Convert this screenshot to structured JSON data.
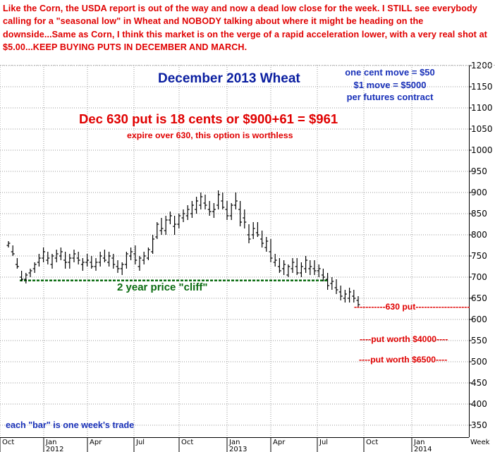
{
  "header_text": "Like the Corn, the USDA report is out of the way and now a dead low close for the week.  I STILL see everybody calling for a \"seasonal low\" in Wheat and NOBODY talking about where it might be heading on the downside...Same as Corn, I think this market is on the verge of a rapid acceleration lower, with a very real shot at $5.00...KEEP BUYING PUTS IN DECEMBER AND MARCH.",
  "colors": {
    "header_red": "#e00000",
    "title_blue": "#0a1ea0",
    "cliff_green": "#0a6b10",
    "bars": "#000000",
    "grid": "#999999"
  },
  "chart_data": {
    "type": "ohlc",
    "title": "December 2013 Wheat",
    "x_unit_label": "Week",
    "ylim": [
      325,
      1210
    ],
    "y_ticks": [
      350,
      400,
      450,
      500,
      550,
      600,
      650,
      700,
      750,
      800,
      850,
      900,
      950,
      1000,
      1050,
      1100,
      1150,
      1200
    ],
    "x_ticks": [
      {
        "label": "Oct",
        "year": ""
      },
      {
        "label": "Jan",
        "year": "2012"
      },
      {
        "label": "Apr",
        "year": ""
      },
      {
        "label": "Jul",
        "year": ""
      },
      {
        "label": "Oct",
        "year": ""
      },
      {
        "label": "Jan",
        "year": "2013"
      },
      {
        "label": "Apr",
        "year": ""
      },
      {
        "label": "Jul",
        "year": ""
      },
      {
        "label": "Oct",
        "year": ""
      },
      {
        "label": "Jan",
        "year": "2014"
      }
    ],
    "grid": true,
    "bars": [
      [
        1,
        775,
        785,
        770,
        780
      ],
      [
        2,
        760,
        775,
        750,
        755
      ],
      [
        3,
        730,
        745,
        720,
        725
      ],
      [
        4,
        700,
        715,
        690,
        695
      ],
      [
        5,
        695,
        710,
        685,
        705
      ],
      [
        6,
        710,
        720,
        700,
        715
      ],
      [
        7,
        720,
        735,
        710,
        730
      ],
      [
        8,
        735,
        755,
        725,
        745
      ],
      [
        9,
        745,
        770,
        735,
        760
      ],
      [
        10,
        740,
        760,
        730,
        745
      ],
      [
        11,
        730,
        755,
        720,
        750
      ],
      [
        12,
        745,
        765,
        735,
        755
      ],
      [
        13,
        750,
        770,
        740,
        760
      ],
      [
        14,
        740,
        760,
        720,
        735
      ],
      [
        15,
        735,
        755,
        720,
        745
      ],
      [
        16,
        745,
        765,
        735,
        755
      ],
      [
        17,
        745,
        760,
        730,
        740
      ],
      [
        18,
        730,
        745,
        715,
        735
      ],
      [
        19,
        735,
        755,
        725,
        740
      ],
      [
        20,
        735,
        750,
        720,
        725
      ],
      [
        21,
        725,
        745,
        715,
        735
      ],
      [
        22,
        735,
        760,
        725,
        750
      ],
      [
        23,
        745,
        765,
        735,
        740
      ],
      [
        24,
        735,
        760,
        725,
        750
      ],
      [
        25,
        745,
        755,
        720,
        730
      ],
      [
        26,
        725,
        740,
        710,
        720
      ],
      [
        27,
        720,
        735,
        705,
        730
      ],
      [
        28,
        730,
        760,
        720,
        755
      ],
      [
        29,
        750,
        770,
        740,
        760
      ],
      [
        30,
        755,
        775,
        730,
        740
      ],
      [
        31,
        725,
        750,
        715,
        745
      ],
      [
        32,
        740,
        760,
        730,
        750
      ],
      [
        33,
        745,
        770,
        740,
        765
      ],
      [
        34,
        760,
        800,
        755,
        790
      ],
      [
        35,
        795,
        830,
        790,
        825
      ],
      [
        36,
        810,
        840,
        800,
        815
      ],
      [
        37,
        810,
        845,
        800,
        835
      ],
      [
        38,
        835,
        855,
        825,
        845
      ],
      [
        39,
        820,
        845,
        800,
        825
      ],
      [
        40,
        825,
        850,
        815,
        845
      ],
      [
        41,
        840,
        860,
        830,
        850
      ],
      [
        42,
        845,
        870,
        835,
        860
      ],
      [
        43,
        850,
        880,
        840,
        870
      ],
      [
        44,
        860,
        890,
        850,
        880
      ],
      [
        45,
        870,
        900,
        860,
        890
      ],
      [
        46,
        875,
        895,
        860,
        870
      ],
      [
        47,
        860,
        880,
        845,
        855
      ],
      [
        48,
        855,
        875,
        840,
        860
      ],
      [
        49,
        870,
        905,
        860,
        895
      ],
      [
        50,
        880,
        900,
        860,
        865
      ],
      [
        51,
        860,
        880,
        835,
        845
      ],
      [
        52,
        845,
        875,
        835,
        870
      ],
      [
        53,
        870,
        900,
        860,
        880
      ],
      [
        54,
        860,
        880,
        820,
        830
      ],
      [
        55,
        840,
        860,
        815,
        830
      ],
      [
        56,
        800,
        825,
        780,
        790
      ],
      [
        57,
        800,
        830,
        790,
        815
      ],
      [
        58,
        805,
        830,
        795,
        800
      ],
      [
        59,
        790,
        810,
        770,
        780
      ],
      [
        60,
        770,
        795,
        760,
        785
      ],
      [
        61,
        760,
        790,
        735,
        745
      ],
      [
        62,
        735,
        755,
        725,
        740
      ],
      [
        63,
        725,
        745,
        710,
        715
      ],
      [
        64,
        720,
        740,
        705,
        730
      ],
      [
        65,
        705,
        730,
        700,
        725
      ],
      [
        66,
        720,
        745,
        710,
        735
      ],
      [
        67,
        725,
        745,
        705,
        710
      ],
      [
        68,
        710,
        735,
        700,
        725
      ],
      [
        69,
        720,
        750,
        710,
        740
      ],
      [
        70,
        720,
        740,
        705,
        725
      ],
      [
        71,
        720,
        740,
        705,
        715
      ],
      [
        72,
        715,
        730,
        700,
        720
      ],
      [
        73,
        705,
        720,
        690,
        700
      ],
      [
        74,
        695,
        710,
        670,
        680
      ],
      [
        75,
        685,
        700,
        670,
        690
      ],
      [
        76,
        675,
        695,
        660,
        670
      ],
      [
        77,
        665,
        680,
        645,
        655
      ],
      [
        78,
        650,
        670,
        640,
        660
      ],
      [
        79,
        650,
        675,
        640,
        665
      ],
      [
        80,
        655,
        670,
        640,
        650
      ],
      [
        81,
        645,
        655,
        630,
        635
      ]
    ],
    "reference_line": {
      "value": 692,
      "label": "2 year price \"cliff\""
    },
    "annotations": [
      {
        "text": "one cent move = $50"
      },
      {
        "text": "$1 move = $5000"
      },
      {
        "text": "per futures contract"
      },
      {
        "text": "Dec 630 put is 18 cents or $900+61 = $961"
      },
      {
        "text": "expire over 630, this option is worthless"
      },
      {
        "text": "-----------630 put-------------------",
        "y": 630
      },
      {
        "text": "----put worth $4000----",
        "y": 550
      },
      {
        "text": "----put worth $6500----",
        "y": 500
      },
      {
        "text": "each \"bar\" is one week's trade"
      }
    ]
  }
}
